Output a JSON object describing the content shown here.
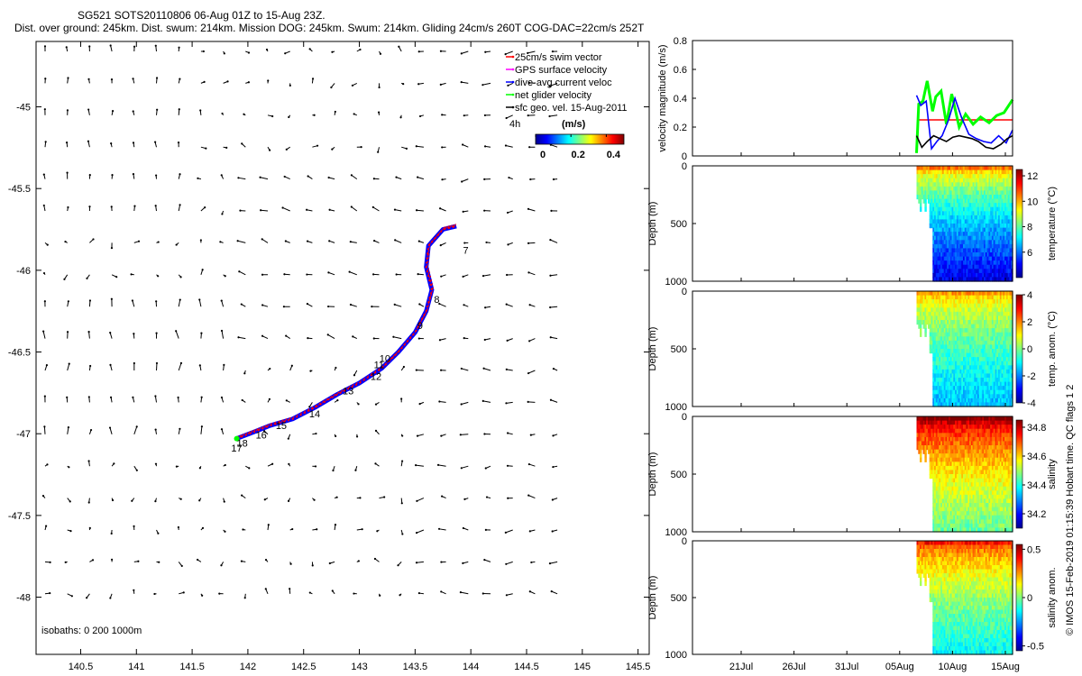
{
  "header": {
    "line1": "SG521 SOTS20110806 06-Aug 01Z to 15-Aug 23Z.",
    "line2": "Dist. over ground: 245km. Dist. swum: 214km. Mission DOG: 245km. Swum: 214km. Gliding 24cm/s 260T COG-DAC=22cm/s 252T"
  },
  "footer_note": "© IMOS 15-Feb-2019 01:15:39 Hobart time. QC flags 1  2",
  "map": {
    "xlim": [
      140.1,
      145.6
    ],
    "ylim": [
      -48.35,
      -44.6
    ],
    "x_ticks": [
      "140.5",
      "141",
      "141.5",
      "142",
      "142.5",
      "143",
      "143.5",
      "144",
      "144.5",
      "145",
      "145.5"
    ],
    "y_ticks": [
      "-45",
      "-45.5",
      "-46",
      "-46.5",
      "-47",
      "-47.5",
      "-48"
    ],
    "legend": [
      {
        "label": "25cm/s swim vector",
        "color": "#ff0000"
      },
      {
        "label": "GPS surface velocity",
        "color": "#ff00ff"
      },
      {
        "label": "dive-avg current veloc",
        "color": "#0000ff"
      },
      {
        "label": "net glider velocity",
        "color": "#00ff00"
      },
      {
        "label": "sfc geo. vel. 15-Aug-2011",
        "color": "#000000"
      }
    ],
    "colorbar_label": "(m/s)",
    "colorbar_ticks": [
      "0",
      "0.2",
      "0.4"
    ],
    "scale_label": "4h",
    "isobaths_label": "isobaths: 0   200   1000m",
    "track": [
      [
        141.9,
        -47.03
      ],
      [
        142.05,
        -46.99
      ],
      [
        142.2,
        -46.95
      ],
      [
        142.4,
        -46.91
      ],
      [
        142.6,
        -46.84
      ],
      [
        142.8,
        -46.76
      ],
      [
        143.0,
        -46.69
      ],
      [
        143.2,
        -46.6
      ],
      [
        143.35,
        -46.5
      ],
      [
        143.5,
        -46.38
      ],
      [
        143.6,
        -46.25
      ],
      [
        143.65,
        -46.12
      ],
      [
        143.6,
        -45.98
      ],
      [
        143.62,
        -45.85
      ],
      [
        143.75,
        -45.75
      ],
      [
        143.87,
        -45.73
      ]
    ],
    "day_labels": [
      {
        "text": "7",
        "x": 143.93,
        "y": -45.9
      },
      {
        "text": "8",
        "x": 143.67,
        "y": -46.2
      },
      {
        "text": "9",
        "x": 143.52,
        "y": -46.36
      },
      {
        "text": "10",
        "x": 143.18,
        "y": -46.56
      },
      {
        "text": "11",
        "x": 143.13,
        "y": -46.6
      },
      {
        "text": "12",
        "x": 143.1,
        "y": -46.67
      },
      {
        "text": "13",
        "x": 142.85,
        "y": -46.76
      },
      {
        "text": "14",
        "x": 142.55,
        "y": -46.9
      },
      {
        "text": "15",
        "x": 142.25,
        "y": -46.97
      },
      {
        "text": "16",
        "x": 142.07,
        "y": -47.03
      },
      {
        "text": "17",
        "x": 141.85,
        "y": -47.11
      },
      {
        "text": "18",
        "x": 141.9,
        "y": -47.08
      }
    ]
  },
  "xaxis_dates": [
    "21Jul",
    "26Jul",
    "31Jul",
    "05Aug",
    "10Aug",
    "15Aug"
  ],
  "chart_data": [
    {
      "type": "line",
      "title": "velocity magnitude (m/s)",
      "ylabel": "velocity magnitude (m/s)",
      "ylim": [
        0,
        0.8
      ],
      "yticks": [
        "0",
        "0.2",
        "0.4",
        "0.6",
        "0.8"
      ],
      "xlim_days": [
        0,
        30
      ],
      "series": [
        {
          "name": "25cm/s swim vector",
          "color": "#ff0000",
          "x": [
            21.2,
            30
          ],
          "values": [
            0.25,
            0.25
          ]
        },
        {
          "name": "net glider velocity",
          "color": "#00ff00",
          "x": [
            21.0,
            21.2,
            21.6,
            22.0,
            22.5,
            22.8,
            23.3,
            23.8,
            24.3,
            25.0,
            25.6,
            26.3,
            27.0,
            27.8,
            28.5,
            29.2,
            30.0
          ],
          "values": [
            0.02,
            0.36,
            0.38,
            0.52,
            0.31,
            0.41,
            0.45,
            0.22,
            0.43,
            0.2,
            0.29,
            0.22,
            0.27,
            0.23,
            0.28,
            0.3,
            0.39
          ]
        },
        {
          "name": "dive-avg current veloc",
          "color": "#0000ff",
          "x": [
            21.0,
            21.4,
            21.9,
            22.4,
            22.9,
            23.4,
            24.0,
            24.6,
            25.2,
            25.9,
            26.6,
            27.3,
            28.0,
            28.7,
            29.4,
            30.0
          ],
          "values": [
            0.42,
            0.35,
            0.38,
            0.05,
            0.1,
            0.14,
            0.25,
            0.4,
            0.27,
            0.15,
            0.12,
            0.1,
            0.09,
            0.14,
            0.09,
            0.18
          ]
        },
        {
          "name": "sfc geo. vel.",
          "color": "#000000",
          "x": [
            21.0,
            21.5,
            22.0,
            22.6,
            23.2,
            23.8,
            24.4,
            25.0,
            25.6,
            26.2,
            26.8,
            27.5,
            28.2,
            28.9,
            29.5,
            30.0
          ],
          "values": [
            0.14,
            0.06,
            0.1,
            0.14,
            0.12,
            0.1,
            0.13,
            0.14,
            0.13,
            0.12,
            0.1,
            0.06,
            0.05,
            0.08,
            0.12,
            0.14
          ]
        }
      ]
    },
    {
      "type": "heatmap",
      "ylabel": "Depth (m)",
      "colorbar_label": "temperature (°C)",
      "cbar_ticks": [
        "12",
        "10",
        "8",
        "6"
      ],
      "clim": [
        4,
        12.5
      ],
      "surface": 10.5,
      "bottom": 4.8,
      "yticks": [
        "0",
        "500",
        "1000"
      ],
      "ylim": [
        0,
        1000
      ],
      "day_start": 21,
      "day_end": 30
    },
    {
      "type": "heatmap",
      "ylabel": "Depth (m)",
      "colorbar_label": "temp. anom. (°C)",
      "cbar_ticks": [
        "4",
        "2",
        "0",
        "-2",
        "-4"
      ],
      "clim": [
        -4,
        4
      ],
      "surface": 1.8,
      "bottom": -1.6,
      "yticks": [
        "0",
        "500",
        "1000"
      ],
      "ylim": [
        0,
        1000
      ],
      "day_start": 21,
      "day_end": 30
    },
    {
      "type": "heatmap",
      "ylabel": "Depth (m)",
      "colorbar_label": "salinity",
      "cbar_ticks": [
        "34.8",
        "34.6",
        "34.4",
        "34.2"
      ],
      "clim": [
        34.1,
        34.85
      ],
      "surface": 34.85,
      "bottom": 34.45,
      "yticks": [
        "0",
        "500",
        "1000"
      ],
      "ylim": [
        0,
        1000
      ],
      "day_start": 21,
      "day_end": 30
    },
    {
      "type": "heatmap",
      "ylabel": "Depth (m)",
      "colorbar_label": "salinity anom.",
      "cbar_ticks": [
        "0.5",
        "0",
        "-0.5"
      ],
      "clim": [
        -0.55,
        0.55
      ],
      "surface": 0.4,
      "bottom": -0.15,
      "yticks": [
        "0",
        "500",
        "1000"
      ],
      "ylim": [
        0,
        1000
      ],
      "day_start": 21,
      "day_end": 30
    }
  ]
}
